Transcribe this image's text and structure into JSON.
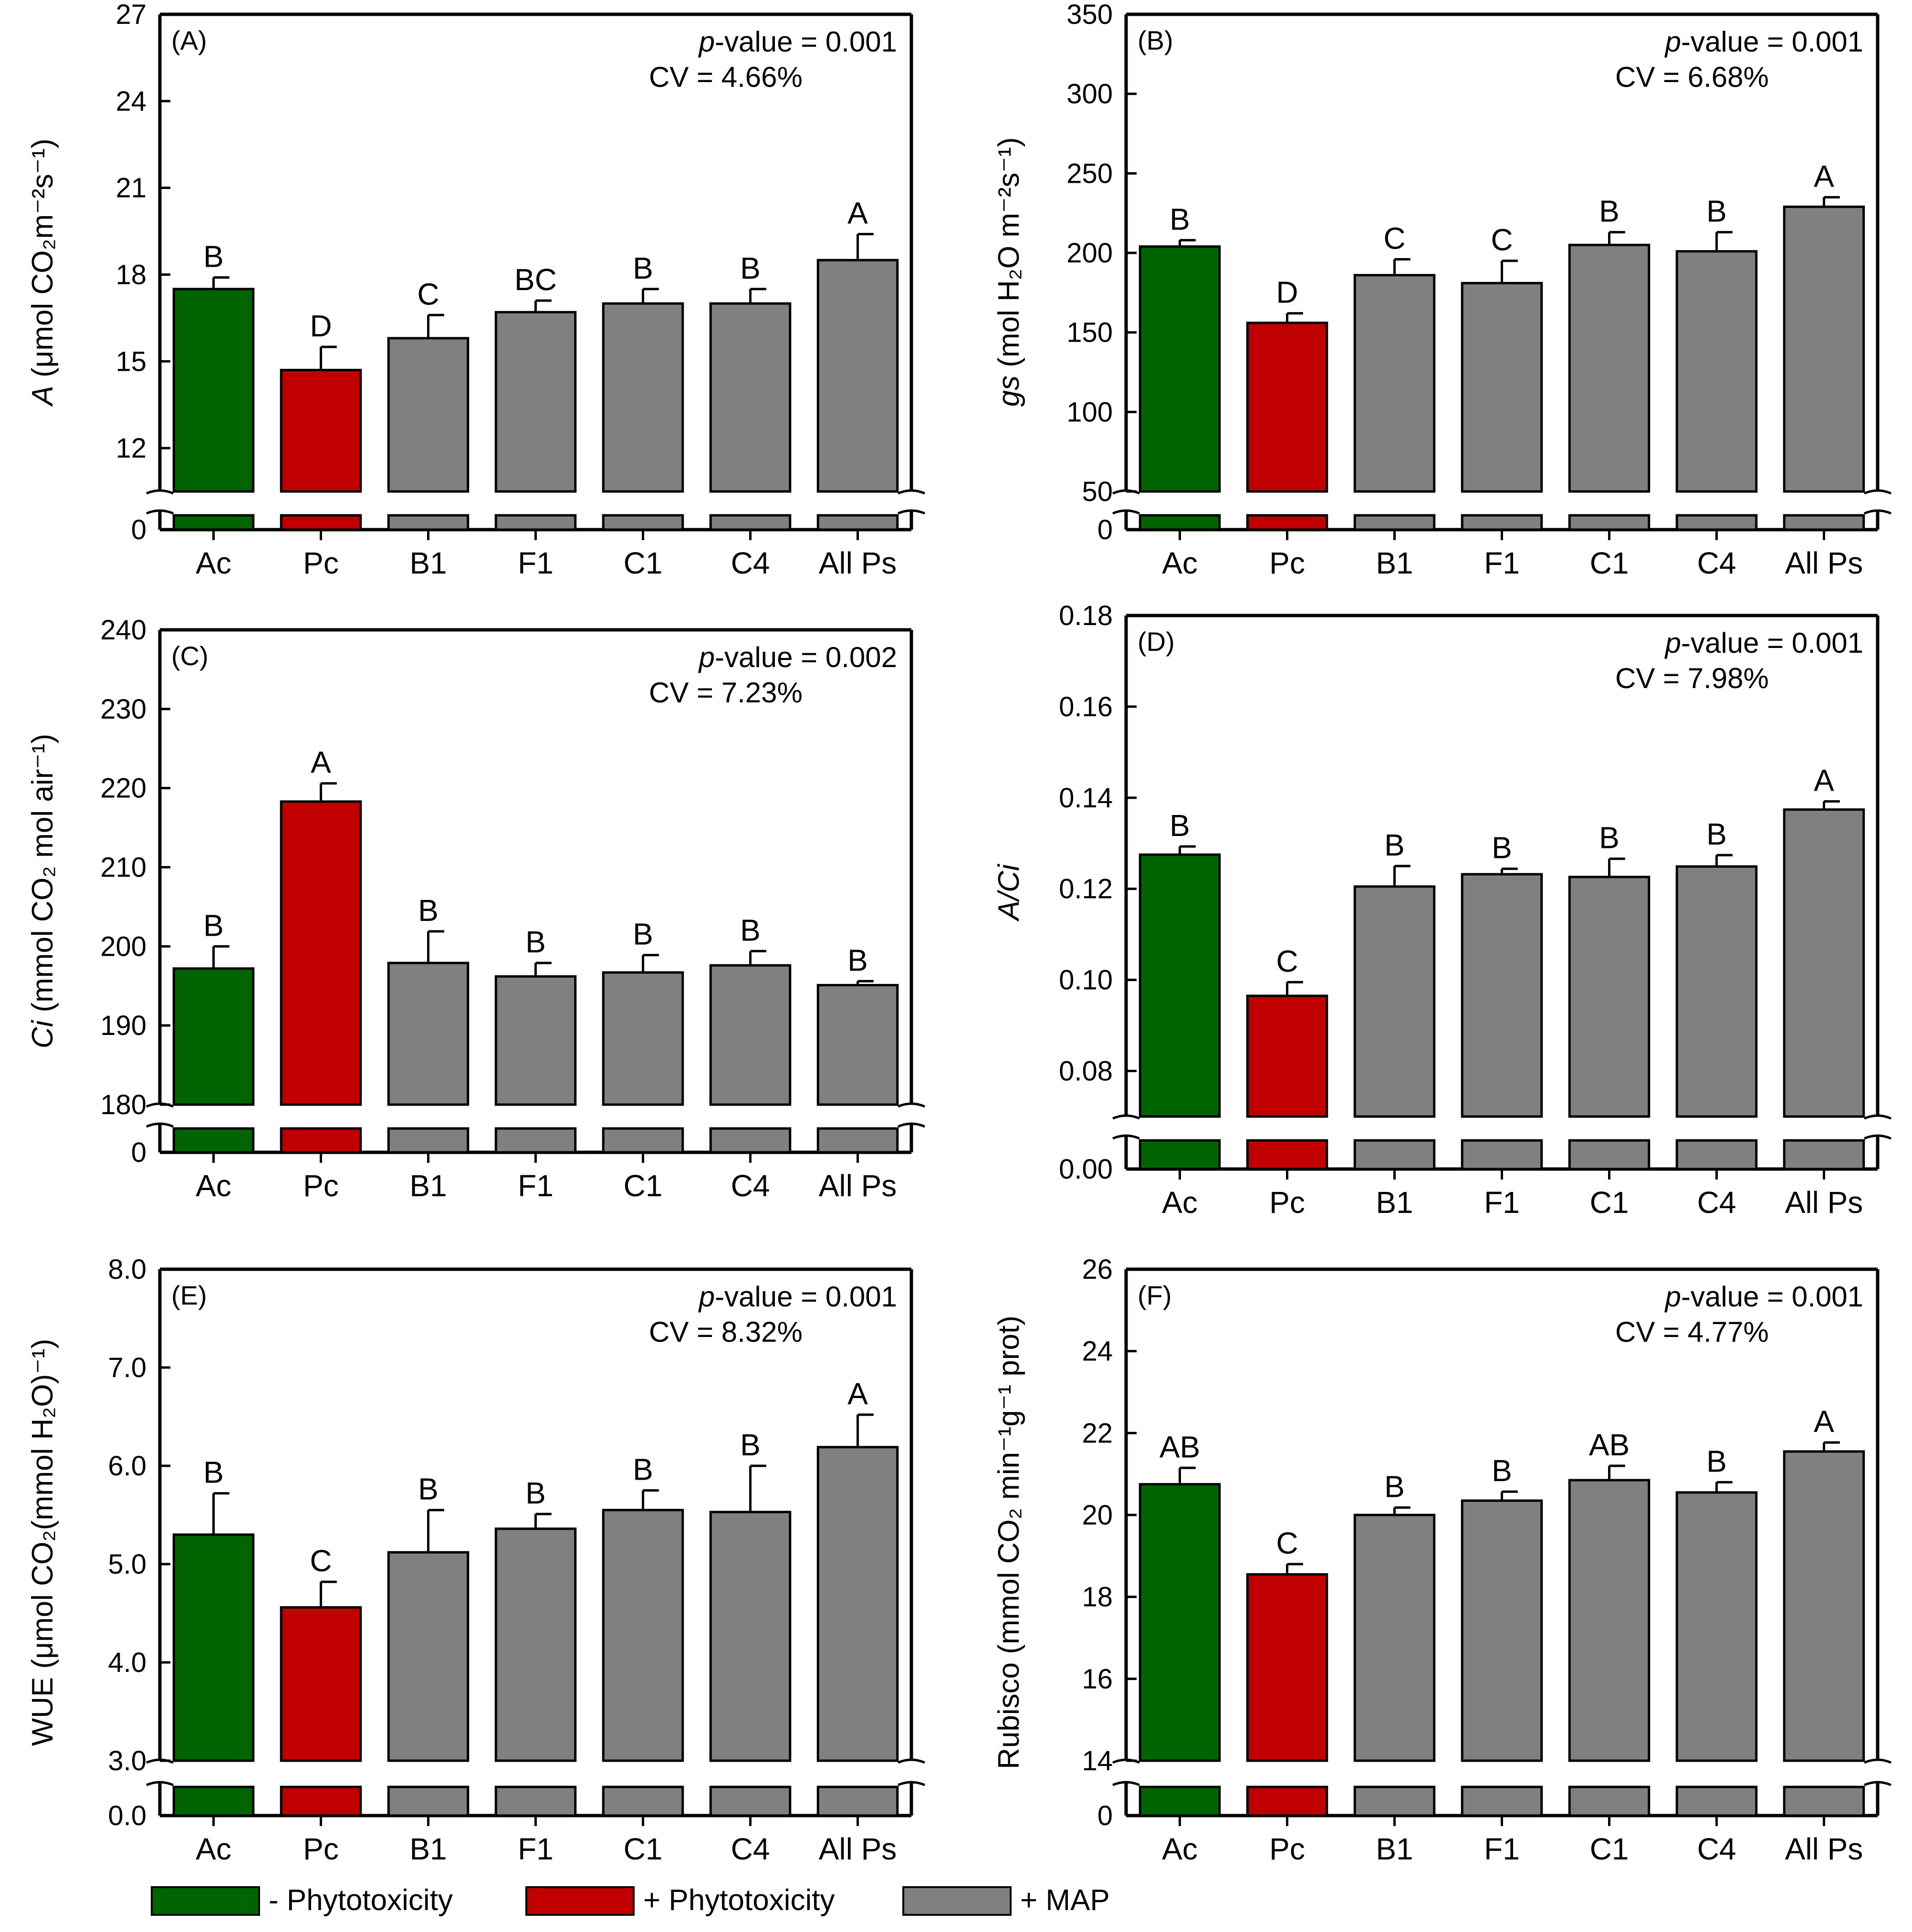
{
  "colors": {
    "ac": "#006400",
    "pc": "#c00000",
    "map": "#808080"
  },
  "chart_data": [
    {
      "type": "bar",
      "panel_label": "(A)",
      "ylabel_italic": "A",
      "ylabel_rest": " (μmol CO₂m⁻²s⁻¹)",
      "p_italic": "p",
      "p_rest": "-value = 0.001",
      "cv": "CV = 4.66%",
      "categories": [
        "Ac",
        "Pc",
        "B1",
        "F1",
        "C1",
        "C4",
        "All Ps"
      ],
      "values": [
        17.5,
        14.7,
        15.8,
        16.7,
        17.0,
        17.0,
        18.5
      ],
      "errors": [
        0.4,
        0.8,
        0.8,
        0.4,
        0.5,
        0.5,
        0.9
      ],
      "letters": [
        "B",
        "D",
        "C",
        "BC",
        "B",
        "B",
        "A"
      ],
      "bar_groups": [
        "ac",
        "pc",
        "map",
        "map",
        "map",
        "map",
        "map"
      ],
      "ylim": [
        10.5,
        27
      ],
      "yticks": [
        12,
        15,
        18,
        21,
        24,
        27
      ],
      "ytick_labels": [
        "12",
        "15",
        "18",
        "21",
        "24",
        "27"
      ],
      "ybreak_label": "0"
    },
    {
      "type": "bar",
      "panel_label": "(B)",
      "ylabel_italic": "gs",
      "ylabel_rest": " (mol H₂O m⁻²s⁻¹)",
      "p_italic": "p",
      "p_rest": "-value = 0.001",
      "cv": "CV = 6.68%",
      "categories": [
        "Ac",
        "Pc",
        "B1",
        "F1",
        "C1",
        "C4",
        "All Ps"
      ],
      "values": [
        204,
        156,
        186,
        181,
        205,
        201,
        229
      ],
      "errors": [
        4,
        6,
        10,
        14,
        8,
        12,
        6
      ],
      "letters": [
        "B",
        "D",
        "C",
        "C",
        "B",
        "B",
        "A"
      ],
      "bar_groups": [
        "ac",
        "pc",
        "map",
        "map",
        "map",
        "map",
        "map"
      ],
      "ylim": [
        50,
        350
      ],
      "yticks": [
        50,
        100,
        150,
        200,
        250,
        300,
        350
      ],
      "ytick_labels": [
        "50",
        "100",
        "150",
        "200",
        "250",
        "300",
        "350"
      ],
      "ybreak_label": "0"
    },
    {
      "type": "bar",
      "panel_label": "(C)",
      "ylabel_italic": "Ci",
      "ylabel_rest": " (mmol CO₂ mol air⁻¹)",
      "p_italic": "p",
      "p_rest": "-value = 0.002",
      "cv": "CV = 7.23%",
      "categories": [
        "Ac",
        "Pc",
        "B1",
        "F1",
        "C1",
        "C4",
        "All Ps"
      ],
      "values": [
        197.2,
        218.3,
        197.9,
        196.2,
        196.7,
        197.6,
        195.1
      ],
      "errors": [
        2.8,
        2.3,
        4.0,
        1.7,
        2.2,
        1.8,
        0.5
      ],
      "letters": [
        "B",
        "A",
        "B",
        "B",
        "B",
        "B",
        "B"
      ],
      "bar_groups": [
        "ac",
        "pc",
        "map",
        "map",
        "map",
        "map",
        "map"
      ],
      "ylim": [
        180,
        240
      ],
      "yticks": [
        180,
        190,
        200,
        210,
        220,
        230,
        240
      ],
      "ytick_labels": [
        "180",
        "190",
        "200",
        "210",
        "220",
        "230",
        "240"
      ],
      "ybreak_label": "0"
    },
    {
      "type": "bar",
      "panel_label": "(D)",
      "ylabel_italic": "A/Ci",
      "ylabel_rest": "",
      "p_italic": "p",
      "p_rest": "-value = 0.001",
      "cv": "CV = 7.98%",
      "categories": [
        "Ac",
        "Pc",
        "B1",
        "F1",
        "C1",
        "C4",
        "All Ps"
      ],
      "values": [
        0.1275,
        0.0965,
        0.1205,
        0.1232,
        0.1226,
        0.1249,
        0.1374
      ],
      "errors": [
        0.0018,
        0.003,
        0.0045,
        0.0012,
        0.004,
        0.0025,
        0.0018
      ],
      "letters": [
        "B",
        "C",
        "B",
        "B",
        "B",
        "B",
        "A"
      ],
      "bar_groups": [
        "ac",
        "pc",
        "map",
        "map",
        "map",
        "map",
        "map"
      ],
      "ylim": [
        0.07,
        0.18
      ],
      "yticks": [
        0.08,
        0.1,
        0.12,
        0.14,
        0.16,
        0.18
      ],
      "ytick_labels": [
        "0.08",
        "0.10",
        "0.12",
        "0.14",
        "0.16",
        "0.18"
      ],
      "ybreak_label": "0.00"
    },
    {
      "type": "bar",
      "panel_label": "(E)",
      "ylabel_italic": "",
      "ylabel_rest": "WUE (μmol CO₂(mmol H₂O)⁻¹)",
      "p_italic": "p",
      "p_rest": "-value = 0.001",
      "cv": "CV = 8.32%",
      "categories": [
        "Ac",
        "Pc",
        "B1",
        "F1",
        "C1",
        "C4",
        "All Ps"
      ],
      "values": [
        5.3,
        4.56,
        5.12,
        5.36,
        5.55,
        5.53,
        6.19
      ],
      "errors": [
        0.42,
        0.26,
        0.43,
        0.15,
        0.2,
        0.47,
        0.33
      ],
      "letters": [
        "B",
        "C",
        "B",
        "B",
        "B",
        "B",
        "A"
      ],
      "bar_groups": [
        "ac",
        "pc",
        "map",
        "map",
        "map",
        "map",
        "map"
      ],
      "ylim": [
        3.0,
        8.0
      ],
      "yticks": [
        3.0,
        4.0,
        5.0,
        6.0,
        7.0,
        8.0
      ],
      "ytick_labels": [
        "3.0",
        "4.0",
        "5.0",
        "6.0",
        "7.0",
        "8.0"
      ],
      "ybreak_label": "0.0"
    },
    {
      "type": "bar",
      "panel_label": "(F)",
      "ylabel_italic": "",
      "ylabel_rest": "Rubisco (mmol CO₂ min⁻¹g⁻¹ prot)",
      "p_italic": "p",
      "p_rest": "-value = 0.001",
      "cv": "CV = 4.77%",
      "categories": [
        "Ac",
        "Pc",
        "B1",
        "F1",
        "C1",
        "C4",
        "All Ps"
      ],
      "values": [
        20.75,
        18.55,
        20.0,
        20.35,
        20.85,
        20.55,
        21.55
      ],
      "errors": [
        0.4,
        0.25,
        0.18,
        0.22,
        0.35,
        0.25,
        0.22
      ],
      "letters": [
        "AB",
        "C",
        "B",
        "B",
        "AB",
        "B",
        "A"
      ],
      "bar_groups": [
        "ac",
        "pc",
        "map",
        "map",
        "map",
        "map",
        "map"
      ],
      "ylim": [
        14,
        26
      ],
      "yticks": [
        14,
        16,
        18,
        20,
        22,
        24,
        26
      ],
      "ytick_labels": [
        "14",
        "16",
        "18",
        "20",
        "22",
        "24",
        "26"
      ],
      "ybreak_label": "0"
    }
  ],
  "legend": [
    {
      "label": "- Phytotoxicity",
      "group": "ac"
    },
    {
      "label": "+ Phytotoxicity",
      "group": "pc"
    },
    {
      "label": "+ MAP",
      "group": "map"
    }
  ]
}
